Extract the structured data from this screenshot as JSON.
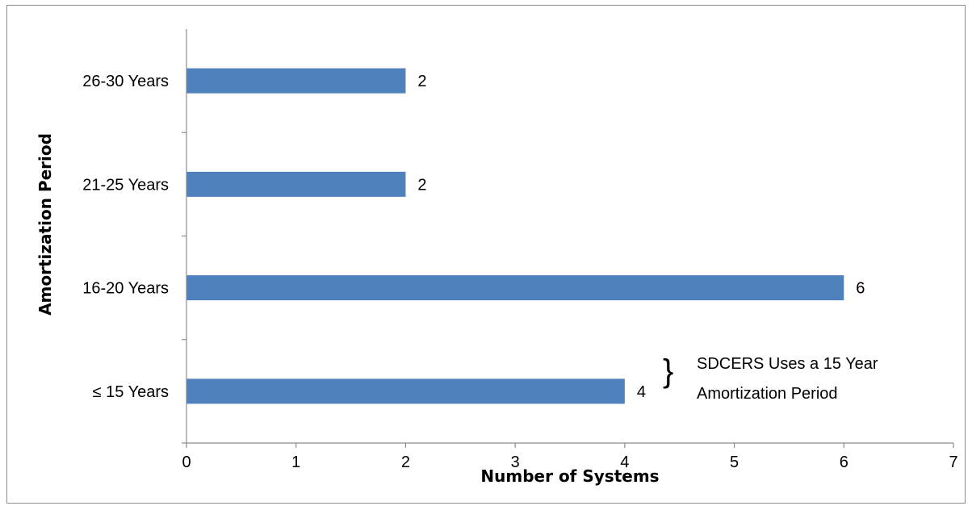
{
  "chart_data": {
    "type": "bar",
    "orientation": "horizontal",
    "categories": [
      "≤ 15 Years",
      "16-20 Years",
      "21-25 Years",
      "26-30 Years"
    ],
    "values": [
      4,
      6,
      2,
      2
    ],
    "data_labels": [
      "4",
      "6",
      "2",
      "2"
    ],
    "title": "",
    "xlabel": "Number of Systems",
    "ylabel": "Amortization Period",
    "xlim": [
      0,
      7
    ],
    "x_ticks": [
      "0",
      "1",
      "2",
      "3",
      "4",
      "5",
      "6",
      "7"
    ],
    "grid": false,
    "bar_color": "#4f81bd",
    "annotation": {
      "category": "≤ 15 Years",
      "lines": [
        "SDCERS Uses a 15 Year",
        "Amortization Period"
      ],
      "bracket": "}"
    }
  }
}
